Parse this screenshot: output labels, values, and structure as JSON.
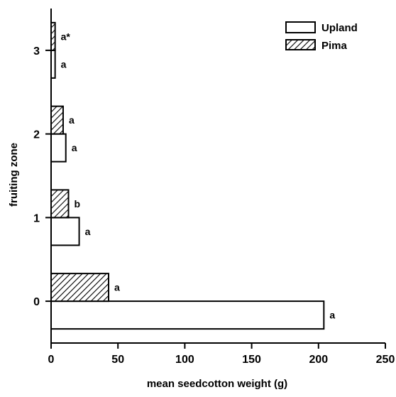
{
  "chart_data": {
    "type": "bar",
    "orientation": "horizontal",
    "title": "",
    "xlabel": "mean seedcotton weight (g)",
    "ylabel": "fruiting zone",
    "xlim": [
      0,
      250
    ],
    "xticks": [
      "0",
      "50",
      "100",
      "150",
      "200",
      "250"
    ],
    "categories": [
      "0",
      "1",
      "2",
      "3"
    ],
    "legend_position": "top-right",
    "grid": false,
    "series": [
      {
        "name": "Upland",
        "fill": "white",
        "values": [
          204,
          21,
          11,
          3
        ],
        "labels": [
          "a",
          "a",
          "a",
          "a"
        ]
      },
      {
        "name": "Pima",
        "fill": "hatched",
        "values": [
          43,
          13,
          9,
          3
        ],
        "labels": [
          "a",
          "b",
          "a",
          "a*"
        ]
      }
    ]
  }
}
